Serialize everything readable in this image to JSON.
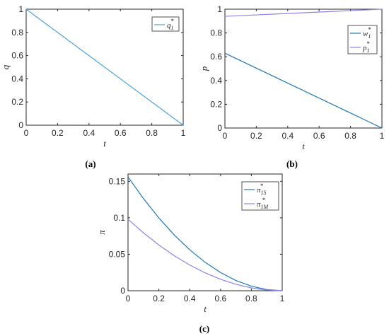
{
  "chart_data": [
    {
      "panel": "(a)",
      "type": "line",
      "xlabel": "t",
      "ylabel": "q",
      "xlim": [
        0,
        1
      ],
      "ylim": [
        0,
        1
      ],
      "xticks": [
        "0",
        "0.2",
        "0.4",
        "0.6",
        "0.8",
        "1"
      ],
      "yticks": [
        "0",
        "0.2",
        "0.4",
        "0.6",
        "0.8",
        "1"
      ],
      "legend_position": "top-right",
      "series": [
        {
          "name": "q1*",
          "label_base": "q",
          "label_sub": "1",
          "label_sup": "*",
          "color": "#4fa3d9",
          "x": [
            0,
            1
          ],
          "y": [
            1,
            0
          ]
        }
      ]
    },
    {
      "panel": "(b)",
      "type": "line",
      "xlabel": "t",
      "ylabel": "p",
      "xlim": [
        0,
        1
      ],
      "ylim": [
        0,
        1
      ],
      "xticks": [
        "0",
        "0.2",
        "0.4",
        "0.6",
        "0.8",
        "1"
      ],
      "yticks": [
        "0",
        "0.2",
        "0.4",
        "0.6",
        "0.8",
        "1"
      ],
      "legend_position": "right",
      "series": [
        {
          "name": "w1*",
          "label_base": "w",
          "label_sub": "1",
          "label_sup": "*",
          "color": "#1f77b4",
          "x": [
            0,
            1
          ],
          "y": [
            0.63,
            0
          ]
        },
        {
          "name": "p1*",
          "label_base": "p",
          "label_sub": "1",
          "label_sup": "*",
          "color": "#8c83e8",
          "x": [
            0,
            1
          ],
          "y": [
            0.94,
            1
          ]
        }
      ]
    },
    {
      "panel": "(c)",
      "type": "line",
      "xlabel": "t",
      "ylabel": "π",
      "xlim": [
        0,
        1
      ],
      "ylim": [
        0,
        0.16
      ],
      "xticks": [
        "0",
        "0.2",
        "0.4",
        "0.6",
        "0.8",
        "1"
      ],
      "yticks": [
        "0",
        "0.05",
        "0.1",
        "0.15"
      ],
      "ytick_values": [
        0,
        0.05,
        0.1,
        0.15
      ],
      "legend_position": "top-right",
      "series": [
        {
          "name": "π1S*",
          "label_base": "π",
          "label_sub": "1S",
          "label_sup": "*",
          "color": "#1f77b4",
          "x": [
            0,
            0.1,
            0.2,
            0.3,
            0.4,
            0.5,
            0.6,
            0.7,
            0.8,
            0.9,
            1.0
          ],
          "y": [
            0.156,
            0.1264,
            0.0998,
            0.0764,
            0.0562,
            0.039,
            0.025,
            0.014,
            0.0062,
            0.0016,
            0
          ]
        },
        {
          "name": "π1M*",
          "label_base": "π",
          "label_sub": "1M",
          "label_sup": "*",
          "color": "#8c83e8",
          "x": [
            0,
            0.1,
            0.2,
            0.3,
            0.4,
            0.5,
            0.6,
            0.7,
            0.8,
            0.9,
            1.0
          ],
          "y": [
            0.098,
            0.0794,
            0.0627,
            0.048,
            0.0353,
            0.0245,
            0.0157,
            0.0088,
            0.0039,
            0.001,
            0
          ]
        }
      ]
    }
  ],
  "panel_labels": [
    "(a)",
    "(b)",
    "(c)"
  ]
}
